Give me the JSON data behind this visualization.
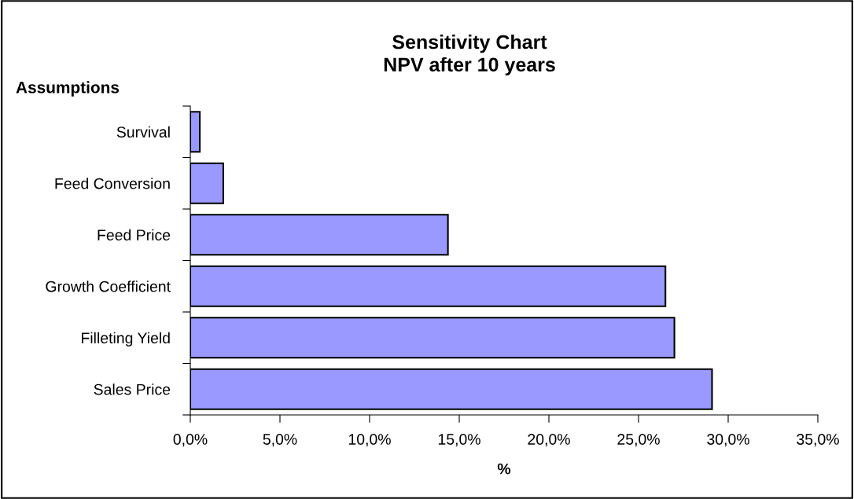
{
  "chart_data": {
    "type": "bar",
    "orientation": "horizontal",
    "title": "Sensitivity Chart\nNPV after 10 years",
    "ylabel": "Assumptions",
    "xlabel": "%",
    "categories": [
      "Survival",
      "Feed Conversion",
      "Feed Price",
      "Growth Coefficient",
      "Filleting Yield",
      "Sales Price"
    ],
    "values": [
      0.53,
      1.84,
      14.37,
      26.5,
      27.0,
      29.1
    ],
    "color": "#9999ff",
    "xlim": [
      0,
      35
    ],
    "xticks": [
      {
        "value": 0,
        "label": "0,0%"
      },
      {
        "value": 5,
        "label": "5,0%"
      },
      {
        "value": 10,
        "label": "10,0%"
      },
      {
        "value": 15,
        "label": "15,0%"
      },
      {
        "value": 20,
        "label": "20,0%"
      },
      {
        "value": 25,
        "label": "25,0%"
      },
      {
        "value": 30,
        "label": "30,0%"
      },
      {
        "value": 35,
        "label": "35,0%"
      }
    ],
    "grid": false,
    "legend": false
  }
}
